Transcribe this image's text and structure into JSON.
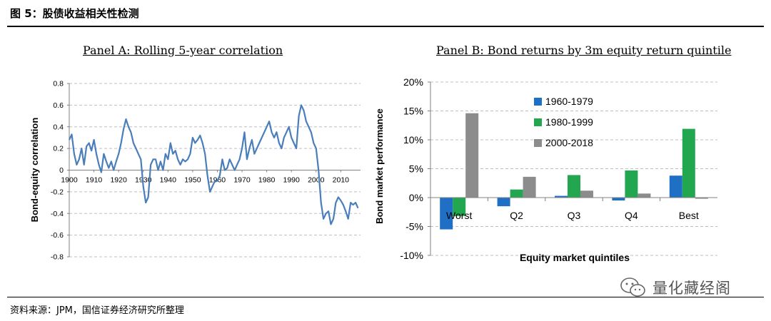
{
  "figure": {
    "title": "图 5：股债收益相关性检测",
    "source": "资料来源：JPM，国信证券经济研究所整理"
  },
  "watermark": {
    "text": "量化藏经阁",
    "icon": "wechat-icon"
  },
  "colors": {
    "line": "#4a7ebb",
    "s1": "#1f6fc5",
    "s2": "#22a750",
    "s3": "#8c8c8c",
    "grid": "#bfbfbf"
  },
  "chart_data": [
    {
      "type": "line",
      "title": "Panel A: Rolling 5-year correlation",
      "ylabel": "Bond-equity correlation",
      "xlabel": "",
      "xlim": [
        1900,
        2018
      ],
      "ylim": [
        -0.8,
        0.8
      ],
      "yticks": [
        -0.8,
        -0.6,
        -0.4,
        -0.2,
        0,
        0.2,
        0.4,
        0.6,
        0.8
      ],
      "xticks": [
        1900,
        1910,
        1920,
        1930,
        1940,
        1950,
        1960,
        1970,
        1980,
        1990,
        2000,
        2010
      ],
      "grid": true,
      "x": [
        1900,
        1901,
        1902,
        1903,
        1904,
        1905,
        1906,
        1907,
        1908,
        1909,
        1910,
        1911,
        1912,
        1913,
        1914,
        1915,
        1916,
        1917,
        1918,
        1919,
        1920,
        1921,
        1922,
        1923,
        1924,
        1925,
        1926,
        1927,
        1928,
        1929,
        1930,
        1931,
        1932,
        1933,
        1934,
        1935,
        1936,
        1937,
        1938,
        1939,
        1940,
        1941,
        1942,
        1943,
        1944,
        1945,
        1946,
        1947,
        1948,
        1949,
        1950,
        1951,
        1952,
        1953,
        1954,
        1955,
        1956,
        1957,
        1958,
        1959,
        1960,
        1961,
        1962,
        1963,
        1964,
        1965,
        1966,
        1967,
        1968,
        1969,
        1970,
        1971,
        1972,
        1973,
        1974,
        1975,
        1976,
        1977,
        1978,
        1979,
        1980,
        1981,
        1982,
        1983,
        1984,
        1985,
        1986,
        1987,
        1988,
        1989,
        1990,
        1991,
        1992,
        1993,
        1994,
        1995,
        1996,
        1997,
        1998,
        1999,
        2000,
        2001,
        2002,
        2003,
        2004,
        2005,
        2006,
        2007,
        2008,
        2009,
        2010,
        2011,
        2012,
        2013,
        2014,
        2015,
        2016,
        2017
      ],
      "y": [
        0.28,
        0.33,
        0.15,
        0.05,
        0.1,
        0.2,
        0.05,
        0.22,
        0.25,
        0.18,
        0.28,
        0.15,
        0.05,
        -0.02,
        0.15,
        0.08,
        0.02,
        0.08,
        0.0,
        0.08,
        0.15,
        0.25,
        0.38,
        0.47,
        0.4,
        0.35,
        0.25,
        0.2,
        0.15,
        0.1,
        -0.15,
        -0.3,
        -0.25,
        0.05,
        0.1,
        0.1,
        0.0,
        0.08,
        0.0,
        0.15,
        0.1,
        0.25,
        0.15,
        0.18,
        0.1,
        0.05,
        0.1,
        0.08,
        0.1,
        0.15,
        0.3,
        0.25,
        0.28,
        0.32,
        0.25,
        0.15,
        -0.05,
        -0.2,
        -0.15,
        -0.1,
        -0.1,
        -0.05,
        0.1,
        0.0,
        0.02,
        0.1,
        0.05,
        0.0,
        0.05,
        0.1,
        0.2,
        0.35,
        0.1,
        0.2,
        0.28,
        0.15,
        0.2,
        0.25,
        0.3,
        0.35,
        0.4,
        0.45,
        0.35,
        0.3,
        0.35,
        0.25,
        0.2,
        0.3,
        0.35,
        0.4,
        0.3,
        0.25,
        0.2,
        0.5,
        0.6,
        0.55,
        0.45,
        0.4,
        0.35,
        0.25,
        0.2,
        0.0,
        -0.3,
        -0.45,
        -0.4,
        -0.38,
        -0.5,
        -0.45,
        -0.3,
        -0.25,
        -0.28,
        -0.32,
        -0.38,
        -0.45,
        -0.3,
        -0.32,
        -0.3,
        -0.35
      ]
    },
    {
      "type": "bar",
      "title": "Panel B: Bond returns by 3m equity return quintile",
      "ylabel": "Bond market performance",
      "xlabel": "Equity market quintiles",
      "categories": [
        "Worst",
        "Q2",
        "Q3",
        "Q4",
        "Best"
      ],
      "ylim": [
        -10,
        20
      ],
      "yticks": [
        "-10%",
        "-5%",
        "0%",
        "5%",
        "10%",
        "15%",
        "20%"
      ],
      "legend_position": "top-left",
      "grid": true,
      "series": [
        {
          "name": "1960-1979",
          "values": [
            -5.5,
            -1.5,
            0.3,
            -0.5,
            3.8
          ]
        },
        {
          "name": "1980-1999",
          "values": [
            -3.2,
            1.4,
            3.9,
            4.7,
            11.9
          ]
        },
        {
          "name": "2000-2018",
          "values": [
            14.6,
            3.6,
            1.2,
            0.7,
            -0.2
          ]
        }
      ]
    }
  ]
}
